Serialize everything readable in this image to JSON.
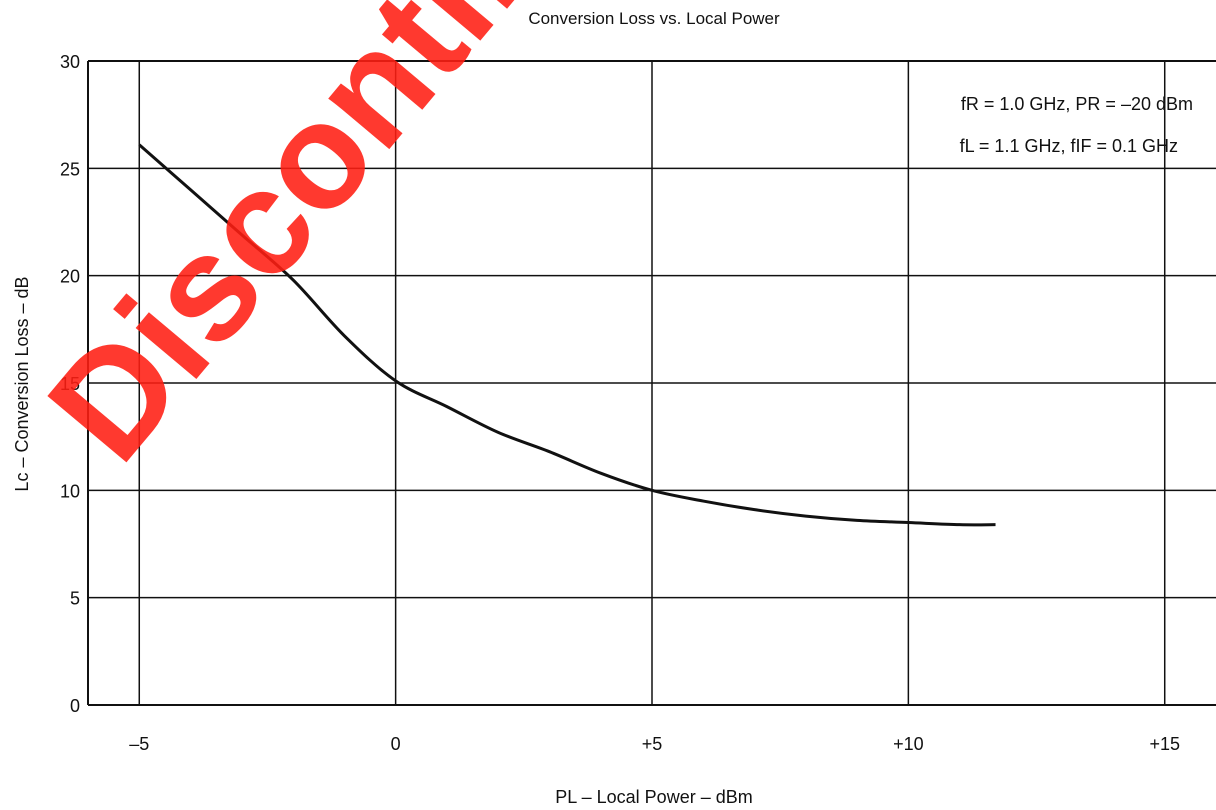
{
  "chart_data": {
    "type": "line",
    "title": "Conversion Loss vs. Local Power",
    "xlabel": "PL – Local Power – dBm",
    "ylabel": "Lc – Conversion Loss – dB",
    "xlim": [
      -6,
      16
    ],
    "ylim": [
      0,
      30
    ],
    "x_ticks": [
      -5,
      0,
      5,
      10,
      15
    ],
    "x_tick_labels": [
      "–5",
      "0",
      "+5",
      "+10",
      "+15"
    ],
    "y_ticks": [
      0,
      5,
      10,
      15,
      20,
      25,
      30
    ],
    "y_tick_labels": [
      "0",
      "5",
      "10",
      "15",
      "20",
      "25",
      "30"
    ],
    "grid": true,
    "series": [
      {
        "x": [
          -5,
          -4,
          -3,
          -2,
          -1,
          0,
          1,
          2,
          3,
          4,
          5,
          6,
          7,
          8,
          9,
          10,
          11,
          11.7
        ],
        "y": [
          26.1,
          24.0,
          21.9,
          19.8,
          17.2,
          15.1,
          13.9,
          12.7,
          11.8,
          10.8,
          10.0,
          9.5,
          9.1,
          8.8,
          8.6,
          8.5,
          8.4,
          8.4
        ]
      }
    ],
    "annotations": [
      "fR = 1.0 GHz, PR = –20 dBm",
      "fL = 1.1 GHz, fIF = 0.1 GHz"
    ],
    "watermark": "Discontinued",
    "colors": {
      "line": "#111111",
      "grid": "#111111",
      "watermark": "#ff1e12"
    }
  }
}
